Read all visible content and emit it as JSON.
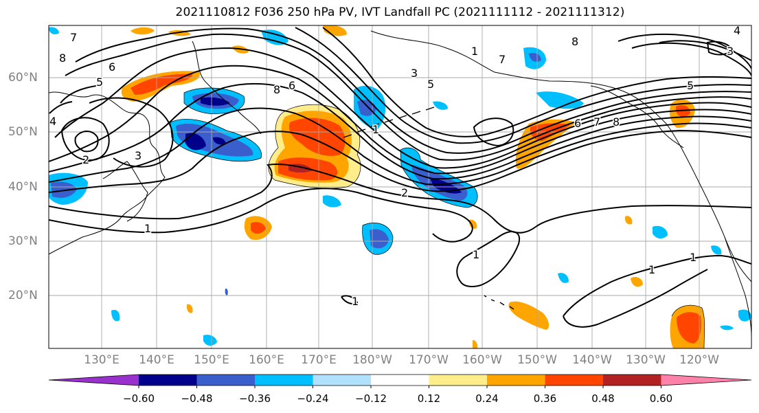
{
  "title": "2021110812 F036 250 hPa PV, IVT Landfall PC (2021111112 - 2021111312)",
  "lat_labels": [
    "60°N",
    "50°N",
    "40°N",
    "30°N",
    "20°N"
  ],
  "lon_labels": [
    "130°E",
    "140°E",
    "150°E",
    "160°E",
    "170°E",
    "180°W",
    "170°W",
    "160°W",
    "150°W",
    "140°W",
    "130°W",
    "120°W"
  ],
  "colorbar": {
    "ticks": [
      "−0.60",
      "−0.48",
      "−0.36",
      "−0.24",
      "−0.12",
      "0.12",
      "0.24",
      "0.36",
      "0.48",
      "0.60"
    ],
    "colors": [
      "#9932cc",
      "#00008b",
      "#3a5fcd",
      "#00bfff",
      "#b0e2ff",
      "#ffffff",
      "#ffec8b",
      "#ffa500",
      "#ff4500",
      "#b22222",
      "#ff82ab"
    ]
  },
  "contour_labels": [
    "7",
    "8",
    "6",
    "5",
    "4",
    "3",
    "2",
    "1",
    "8",
    "6",
    "3",
    "2",
    "5",
    "1",
    "7",
    "8",
    "6",
    "7",
    "8",
    "5",
    "3",
    "4",
    "1",
    "1",
    "1",
    "1",
    "1"
  ]
}
